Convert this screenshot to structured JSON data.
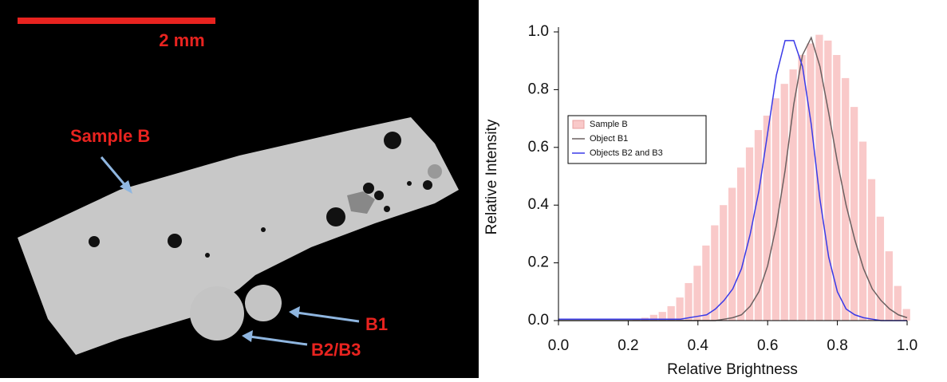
{
  "image": {
    "scale_label": "2 mm",
    "labels": [
      "Sample B",
      "B1",
      "B2/B3"
    ]
  },
  "chart_data": {
    "type": "histogram",
    "xlabel": "Relative Brightness",
    "ylabel": "Relative Intensity",
    "x": [
      0,
      0.025,
      0.05,
      0.075,
      0.1,
      0.125,
      0.15,
      0.175,
      0.2,
      0.225,
      0.25,
      0.275,
      0.3,
      0.325,
      0.35,
      0.375,
      0.4,
      0.425,
      0.45,
      0.475,
      0.5,
      0.525,
      0.55,
      0.575,
      0.6,
      0.625,
      0.65,
      0.675,
      0.7,
      0.725,
      0.75,
      0.775,
      0.8,
      0.825,
      0.85,
      0.875,
      0.9,
      0.925,
      0.95,
      0.975,
      1
    ],
    "series": [
      {
        "name": "Sample B",
        "color": "#f9c9c9",
        "style": "bars",
        "values": [
          0,
          0,
          0,
          0,
          0,
          0,
          0,
          0,
          0,
          0.005,
          0.01,
          0.02,
          0.03,
          0.05,
          0.08,
          0.13,
          0.19,
          0.26,
          0.33,
          0.4,
          0.46,
          0.53,
          0.6,
          0.66,
          0.71,
          0.77,
          0.82,
          0.87,
          0.92,
          0.96,
          0.99,
          0.97,
          0.92,
          0.84,
          0.74,
          0.62,
          0.49,
          0.36,
          0.24,
          0.12,
          0.04
        ]
      },
      {
        "name": "Object B1",
        "color": "#6b6060",
        "style": "line",
        "values": [
          0,
          0,
          0,
          0,
          0,
          0,
          0,
          0,
          0,
          0,
          0,
          0,
          0,
          0,
          0,
          0,
          0,
          0,
          0,
          0.005,
          0.01,
          0.02,
          0.05,
          0.1,
          0.19,
          0.33,
          0.52,
          0.75,
          0.92,
          0.98,
          0.88,
          0.72,
          0.55,
          0.4,
          0.28,
          0.18,
          0.11,
          0.07,
          0.04,
          0.02,
          0.01
        ]
      },
      {
        "name": "Objects B2 and B3",
        "color": "#3a3ae8",
        "style": "line",
        "values": [
          0.005,
          0.005,
          0.005,
          0.005,
          0.005,
          0.005,
          0.005,
          0.005,
          0.005,
          0.005,
          0.005,
          0.005,
          0.005,
          0.005,
          0.005,
          0.01,
          0.015,
          0.02,
          0.04,
          0.07,
          0.11,
          0.18,
          0.3,
          0.45,
          0.65,
          0.85,
          0.97,
          0.97,
          0.88,
          0.68,
          0.42,
          0.22,
          0.1,
          0.04,
          0.02,
          0.01,
          0.005,
          0,
          0,
          0,
          0
        ]
      }
    ],
    "xlim": [
      0,
      1
    ],
    "ylim": [
      0,
      1
    ],
    "xticks": [
      {
        "value": 0,
        "label": "0.0"
      },
      0.2,
      0.4,
      0.6,
      0.8,
      {
        "value": 1,
        "label": "1.0"
      }
    ],
    "yticks": [
      {
        "value": 0,
        "label": "0.0"
      },
      0.2,
      0.4,
      0.6,
      0.8,
      {
        "value": 1,
        "label": "1.0"
      }
    ],
    "legend": "upper-left"
  }
}
